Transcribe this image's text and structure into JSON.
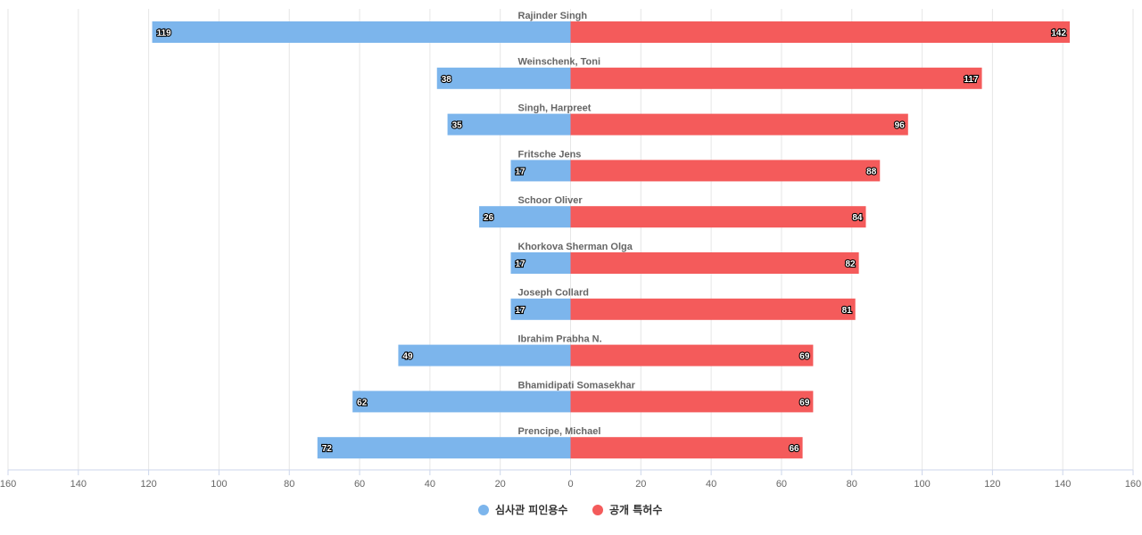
{
  "chart_data": {
    "type": "bar",
    "orientation": "horizontal-diverging",
    "categories": [
      "Rajinder Singh",
      "Weinschenk, Toni",
      "Singh, Harpreet",
      "Fritsche Jens",
      "Schoor Oliver",
      "Khorkova Sherman Olga",
      "Joseph Collard",
      "Ibrahim Prabha N.",
      "Bhamidipati Somasekhar",
      "Prencipe, Michael"
    ],
    "series": [
      {
        "name": "심사관 피인용수",
        "color": "#7cb5ec",
        "side": "left",
        "values": [
          119,
          38,
          35,
          17,
          26,
          17,
          17,
          49,
          62,
          72
        ]
      },
      {
        "name": "공개 특허수",
        "color": "#f45b5b",
        "side": "right",
        "values": [
          142,
          117,
          96,
          88,
          84,
          82,
          81,
          69,
          69,
          66
        ]
      }
    ],
    "xlim": [
      -160,
      160
    ],
    "ticks": [
      -160,
      -140,
      -120,
      -100,
      -80,
      -60,
      -40,
      -20,
      0,
      20,
      40,
      60,
      80,
      100,
      120,
      140,
      160
    ],
    "tick_labels": [
      "160",
      "140",
      "120",
      "100",
      "80",
      "60",
      "40",
      "20",
      "0",
      "20",
      "40",
      "60",
      "80",
      "100",
      "120",
      "140",
      "160"
    ],
    "grid": true,
    "legend_position": "bottom-center",
    "title": "",
    "xlabel": "",
    "ylabel": ""
  }
}
